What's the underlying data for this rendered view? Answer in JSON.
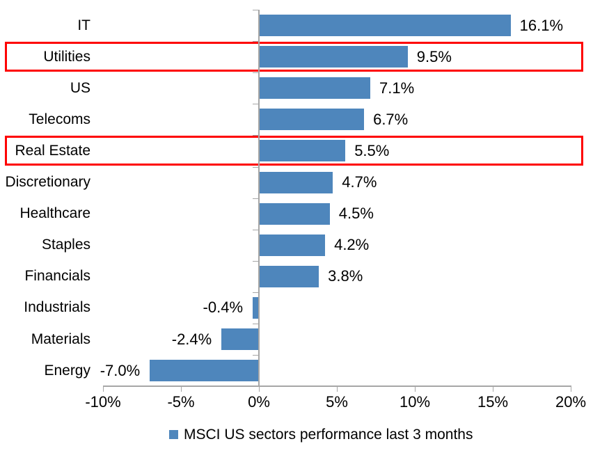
{
  "chart_data": {
    "type": "bar",
    "orientation": "horizontal",
    "categories": [
      "IT",
      "Utilities",
      "US",
      "Telecoms",
      "Real Estate",
      "Discretionary",
      "Healthcare",
      "Staples",
      "Financials",
      "Industrials",
      "Materials",
      "Energy"
    ],
    "values": [
      16.1,
      9.5,
      7.1,
      6.7,
      5.5,
      4.7,
      4.5,
      4.2,
      3.8,
      -0.4,
      -2.4,
      -7.0
    ],
    "data_labels": [
      "16.1%",
      "9.5%",
      "7.1%",
      "6.7%",
      "5.5%",
      "4.7%",
      "4.5%",
      "4.2%",
      "3.8%",
      "-0.4%",
      "-2.4%",
      "-7.0%"
    ],
    "x_tick_labels": [
      "-10%",
      "-5%",
      "0%",
      "5%",
      "10%",
      "15%",
      "20%"
    ],
    "xlim": [
      -10,
      20
    ],
    "x_tick_step": 5,
    "grid": false,
    "title": "",
    "xlabel": "",
    "ylabel": "",
    "legend_position": "bottom",
    "highlighted_categories": [
      "Utilities",
      "Real Estate"
    ],
    "highlighted_rows": [
      1,
      4
    ],
    "bar_color": "#4e86bc",
    "highlight_box_color": "#fe0000",
    "axis_color": "#a6a6a6",
    "text_color": "#000000"
  },
  "legend": {
    "label": "MSCI US sectors performance last 3 months"
  }
}
